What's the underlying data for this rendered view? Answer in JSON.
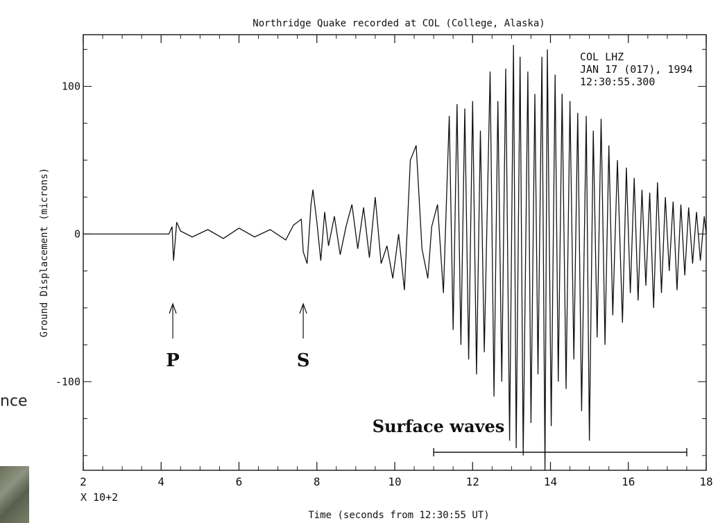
{
  "side": {
    "fragment_text": "nce"
  },
  "chart_data": {
    "type": "line",
    "title": "Northridge Quake recorded at COL (College, Alaska)",
    "xlabel": "Time (seconds from 12:30:55 UT)",
    "ylabel": "Ground Displacement (microns)",
    "x_multiplier_label": "X 10+2",
    "xlim": [
      2,
      18
    ],
    "ylim": [
      -160,
      135
    ],
    "x_ticks": [
      2,
      4,
      6,
      8,
      10,
      12,
      14,
      16,
      18
    ],
    "y_ticks": [
      100,
      0,
      -100
    ],
    "x_tick_labels": [
      "2",
      "4",
      "6",
      "8",
      "10",
      "12",
      "14",
      "16",
      "18"
    ],
    "y_tick_labels": [
      "100",
      "0",
      "-100"
    ],
    "header_lines": [
      "COL  LHZ",
      "JAN 17 (017), 1994",
      "12:30:55.300"
    ],
    "annotations": [
      {
        "label": "P",
        "x": 4.3
      },
      {
        "label": "S",
        "x": 7.65
      }
    ],
    "surface_waves": {
      "label": "Surface waves",
      "x_start": 11.0,
      "x_end": 17.5
    },
    "series": [
      {
        "x": [
          2.0,
          3.0,
          4.2,
          4.28,
          4.32,
          4.4,
          4.5,
          4.8,
          5.2,
          5.6,
          6.0,
          6.4,
          6.8,
          7.2,
          7.4,
          7.5,
          7.6,
          7.65,
          7.75,
          7.85,
          7.9,
          8.0,
          8.1,
          8.2,
          8.3,
          8.45,
          8.6,
          8.75,
          8.9,
          9.05,
          9.2,
          9.35,
          9.5,
          9.65,
          9.8,
          9.95,
          10.1,
          10.25,
          10.4,
          10.55,
          10.7,
          10.85,
          10.95,
          11.1,
          11.25,
          11.4,
          11.5,
          11.6,
          11.7,
          11.8,
          11.9,
          12.0,
          12.1,
          12.2,
          12.3,
          12.45,
          12.55,
          12.65,
          12.75,
          12.85,
          12.95,
          13.05,
          13.12,
          13.22,
          13.3,
          13.42,
          13.5,
          13.6,
          13.68,
          13.78,
          13.86,
          13.92,
          14.02,
          14.12,
          14.2,
          14.3,
          14.4,
          14.5,
          14.6,
          14.7,
          14.8,
          14.92,
          15.0,
          15.1,
          15.2,
          15.3,
          15.4,
          15.5,
          15.6,
          15.72,
          15.85,
          15.95,
          16.05,
          16.15,
          16.25,
          16.35,
          16.45,
          16.55,
          16.65,
          16.75,
          16.85,
          16.95,
          17.05,
          17.15,
          17.25,
          17.35,
          17.45,
          17.55,
          17.65,
          17.75,
          17.85,
          17.95,
          18.0
        ],
        "y": [
          0,
          0,
          0,
          5,
          -18,
          8,
          2,
          -2,
          3,
          -3,
          4,
          -2,
          3,
          -4,
          6,
          8,
          10,
          -12,
          -20,
          20,
          30,
          8,
          -18,
          15,
          -8,
          12,
          -14,
          5,
          20,
          -10,
          18,
          -16,
          25,
          -20,
          -8,
          -30,
          0,
          -38,
          50,
          60,
          -10,
          -30,
          5,
          20,
          -40,
          80,
          -65,
          88,
          -75,
          85,
          -85,
          90,
          -95,
          70,
          -80,
          110,
          -110,
          90,
          -100,
          112,
          -140,
          128,
          -145,
          120,
          -150,
          110,
          -128,
          95,
          -95,
          120,
          -160,
          125,
          -130,
          108,
          -100,
          95,
          -105,
          90,
          -85,
          82,
          -120,
          80,
          -140,
          70,
          -70,
          78,
          -75,
          60,
          -55,
          50,
          -60,
          45,
          -40,
          38,
          -45,
          30,
          -35,
          28,
          -50,
          35,
          -40,
          25,
          -25,
          22,
          -38,
          20,
          -28,
          18,
          -20,
          15,
          -18,
          12,
          0
        ]
      }
    ],
    "grid": false
  }
}
